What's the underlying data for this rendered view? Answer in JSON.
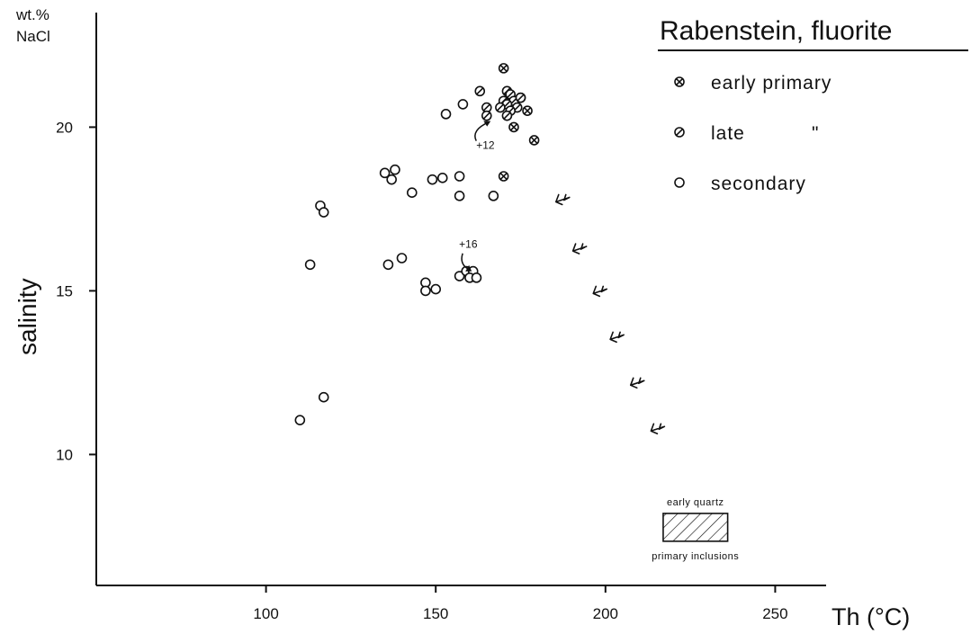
{
  "chart_data": {
    "type": "scatter",
    "title": "Rabenstein, fluorite",
    "xlabel": "Th (°C)",
    "ylabel": "salinity",
    "y_unit_label": [
      "wt.%",
      "NaCl"
    ],
    "xlim": [
      50,
      265
    ],
    "ylim": [
      6.0,
      23.5
    ],
    "x_ticks": [
      100,
      150,
      200,
      250
    ],
    "y_ticks": [
      10,
      15,
      20
    ],
    "grid": false,
    "legend": {
      "position": "top-right",
      "entries": [
        {
          "symbol": "circle-cross",
          "label": "early primary"
        },
        {
          "symbol": "circle-slash",
          "label": "late",
          "ditto": "\""
        },
        {
          "symbol": "circle-open",
          "label": "secondary"
        }
      ]
    },
    "series": [
      {
        "name": "early primary",
        "symbol": "circle-cross",
        "points": [
          [
            170,
            21.8
          ],
          [
            175,
            20.9
          ],
          [
            177,
            20.5
          ],
          [
            173,
            20.0
          ],
          [
            179,
            19.6
          ],
          [
            170,
            18.5
          ]
        ]
      },
      {
        "name": "late",
        "symbol": "circle-slash",
        "points": [
          [
            163,
            21.1
          ],
          [
            171,
            21.1
          ],
          [
            172,
            21.0
          ],
          [
            170,
            20.8
          ],
          [
            173,
            20.8
          ],
          [
            175,
            20.9
          ],
          [
            171,
            20.7
          ],
          [
            174,
            20.6
          ],
          [
            169,
            20.6
          ],
          [
            172,
            20.5
          ],
          [
            165,
            20.6
          ],
          [
            171,
            20.35
          ],
          [
            165,
            20.35
          ]
        ]
      },
      {
        "name": "secondary",
        "symbol": "circle-open",
        "points": [
          [
            158,
            20.7
          ],
          [
            153,
            20.4
          ],
          [
            135,
            18.6
          ],
          [
            138,
            18.7
          ],
          [
            137,
            18.4
          ],
          [
            149,
            18.4
          ],
          [
            152,
            18.45
          ],
          [
            157,
            18.5
          ],
          [
            143,
            18.0
          ],
          [
            157,
            17.9
          ],
          [
            167,
            17.9
          ],
          [
            116,
            17.6
          ],
          [
            117,
            17.4
          ],
          [
            140,
            16.0
          ],
          [
            136,
            15.8
          ],
          [
            113,
            15.8
          ],
          [
            147,
            15.25
          ],
          [
            147,
            15.0
          ],
          [
            150,
            15.05
          ],
          [
            157,
            15.45
          ],
          [
            159,
            15.6
          ],
          [
            161,
            15.6
          ],
          [
            160,
            15.4
          ],
          [
            162,
            15.4
          ],
          [
            117,
            11.75
          ],
          [
            110,
            11.05
          ]
        ]
      },
      {
        "name": "",
        "symbol": "arrow-up-left",
        "points": [
          [
            187,
            17.8
          ],
          [
            192,
            16.3
          ],
          [
            198,
            15.0
          ],
          [
            203,
            13.6
          ],
          [
            209,
            12.2
          ],
          [
            215,
            10.8
          ]
        ]
      }
    ],
    "annotations": [
      {
        "text": "+12",
        "x": 163,
        "y": 19.8
      },
      {
        "text": "+16",
        "x": 159,
        "y": 16.2
      }
    ],
    "region": {
      "label_top": "early quartz",
      "label_bottom": "primary inclusions",
      "x_range": [
        217,
        236
      ],
      "y_range": [
        7.35,
        8.2
      ],
      "fill": "hatched"
    }
  }
}
